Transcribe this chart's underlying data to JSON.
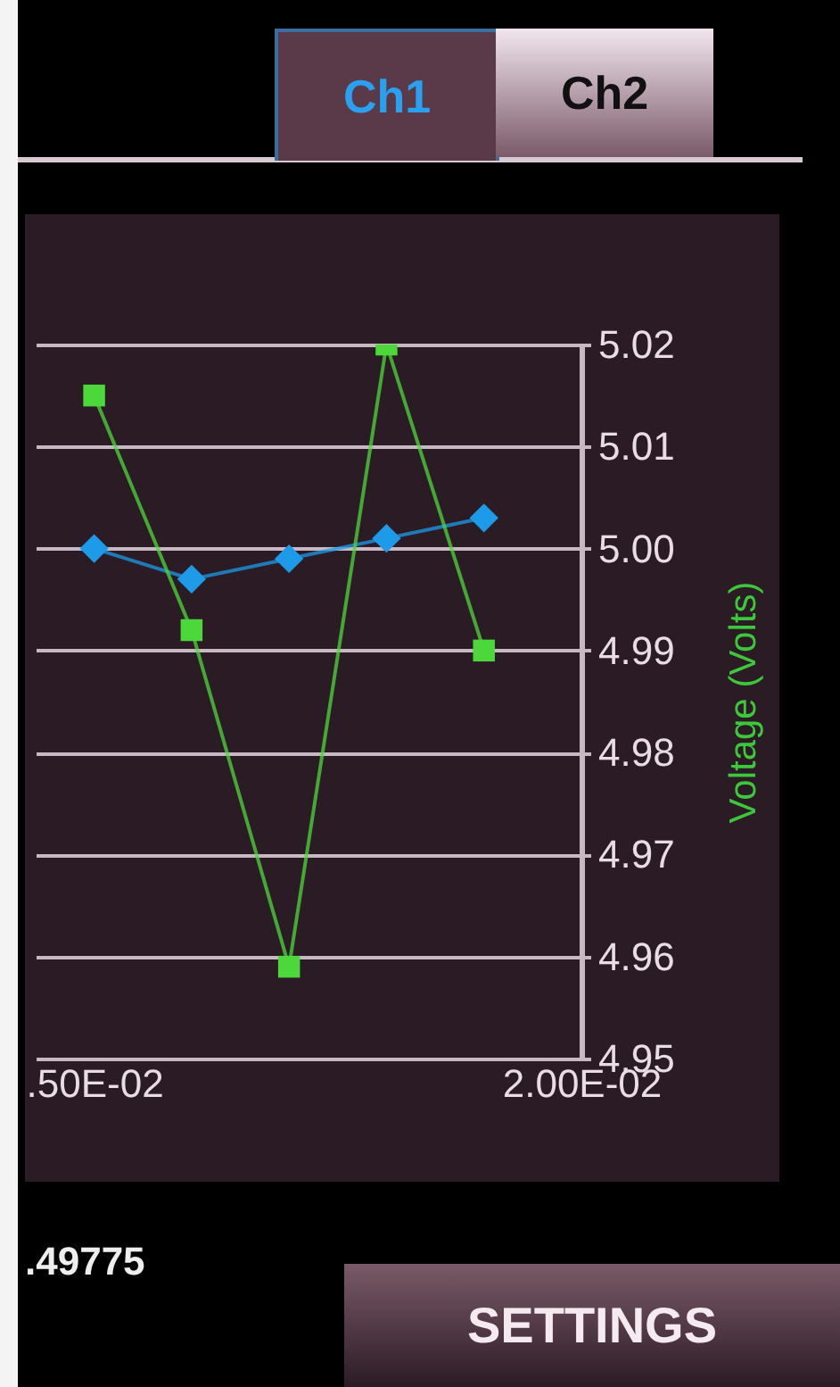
{
  "chart_data": {
    "type": "line",
    "ylabel": "Voltage (Volts)",
    "categories": [
      ".50E-02",
      null,
      null,
      null,
      null,
      "2.00E-02"
    ],
    "series": [
      {
        "color": "#1e9be8",
        "marker": "diamond",
        "values": [
          5.0,
          4.997,
          4.999,
          5.001,
          5.003,
          null
        ]
      },
      {
        "color": "#4cd83a",
        "marker": "square",
        "values": [
          5.015,
          4.992,
          4.959,
          5.02,
          4.99,
          null
        ]
      }
    ],
    "ylim": [
      4.95,
      5.02
    ],
    "yticks": [
      {
        "value": 4.95,
        "label": "4.95"
      },
      {
        "value": 4.96,
        "label": "4.96"
      },
      {
        "value": 4.97,
        "label": "4.97"
      },
      {
        "value": 4.98,
        "label": "4.98"
      },
      {
        "value": 4.99,
        "label": "4.99"
      },
      {
        "value": 5.0,
        "label": "5.00"
      },
      {
        "value": 5.01,
        "label": "5.01"
      },
      {
        "value": 5.02,
        "label": "5.02"
      }
    ],
    "grid": "y",
    "annotations": [
      "Ch1",
      "Ch2",
      ".49775",
      "SETTINGS"
    ]
  }
}
